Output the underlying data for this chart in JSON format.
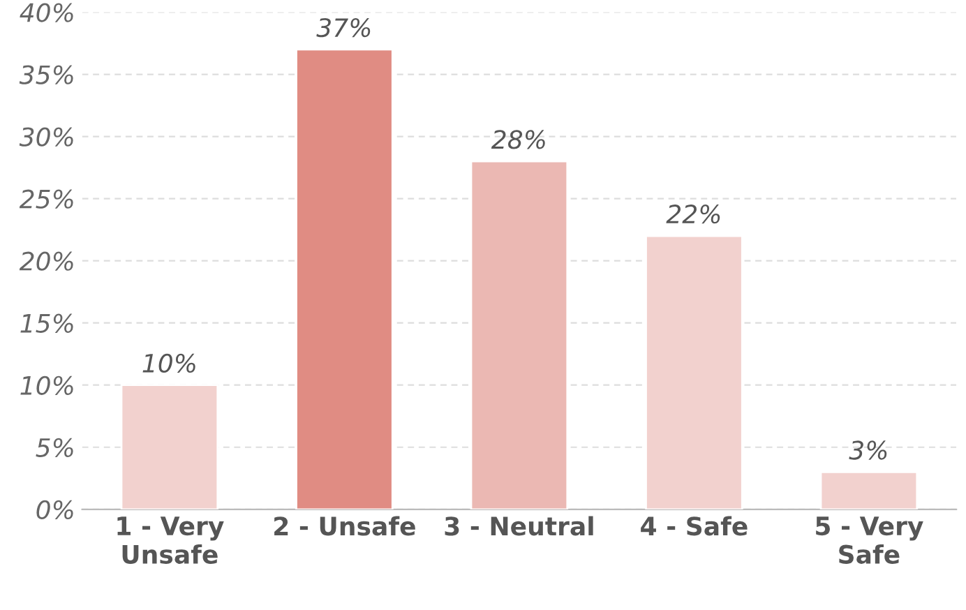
{
  "chart_data": {
    "type": "bar",
    "categories": [
      "1 - Very\nUnsafe",
      "2 - Unsafe",
      "3 - Neutral",
      "4 - Safe",
      "5 - Very\nSafe"
    ],
    "values": [
      10,
      37,
      28,
      22,
      3
    ],
    "colors": [
      "#f8ccc8",
      "#ef8074",
      "#f4b0aa",
      "#f8ccc8",
      "#f8ccc8"
    ],
    "data_labels": true,
    "value_labels": [
      "10%",
      "37%",
      "28%",
      "22%",
      "3%"
    ],
    "ylim": [
      0,
      40
    ],
    "yticks": [
      {
        "value": 0,
        "label": "0%"
      },
      {
        "value": 5,
        "label": "5%"
      },
      {
        "value": 10,
        "label": "10%"
      },
      {
        "value": 15,
        "label": "15%"
      },
      {
        "value": 20,
        "label": "20%"
      },
      {
        "value": 25,
        "label": "25%"
      },
      {
        "value": 30,
        "label": "30%"
      },
      {
        "value": 35,
        "label": "35%"
      },
      {
        "value": 40,
        "label": "40%"
      }
    ],
    "grid": "y"
  }
}
